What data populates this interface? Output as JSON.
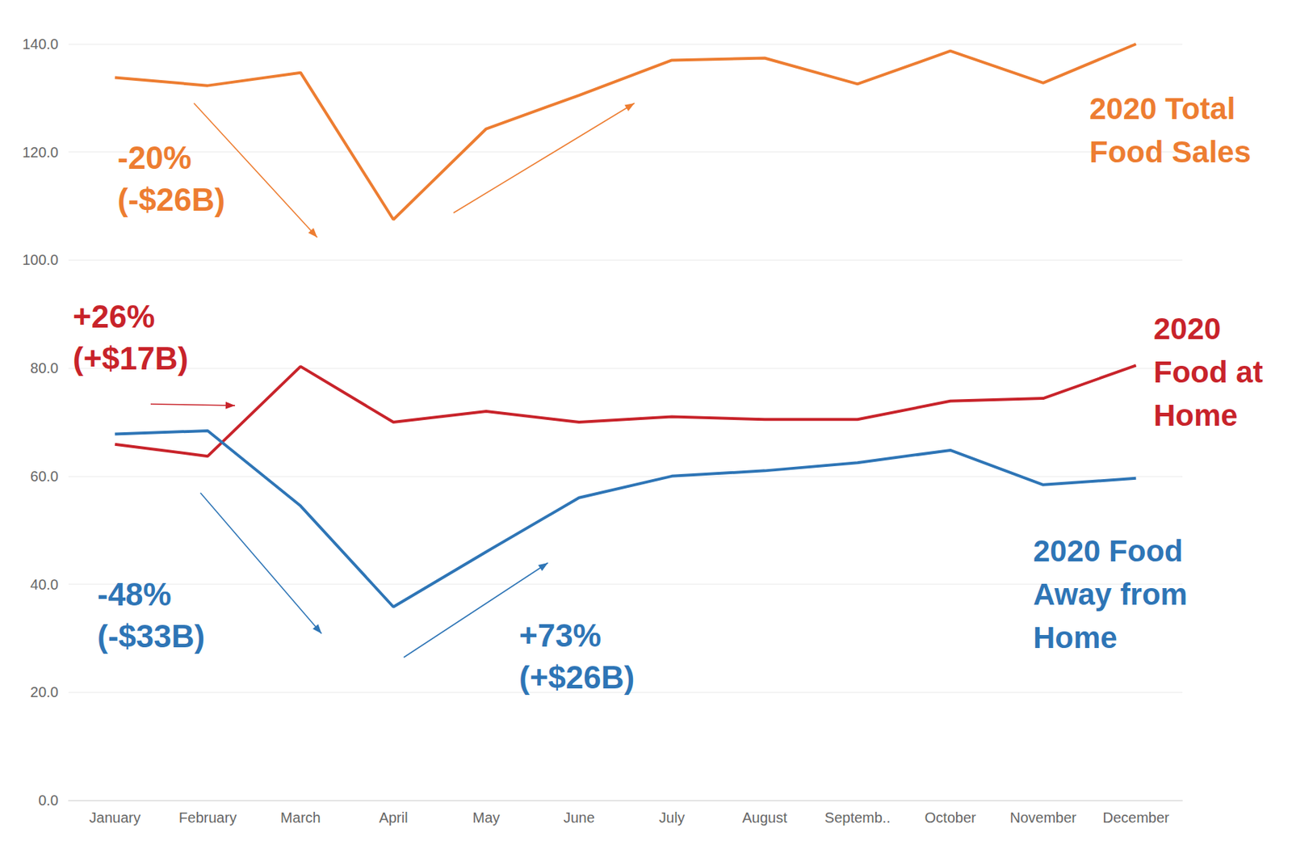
{
  "chart_data": {
    "type": "line",
    "categories": [
      "January",
      "February",
      "March",
      "April",
      "May",
      "June",
      "July",
      "August",
      "Septemb..",
      "October",
      "November",
      "December"
    ],
    "series": [
      {
        "name": "2020 Total Food Sales",
        "color": "#ed7d31",
        "values": [
          133.8,
          132.3,
          134.7,
          107.5,
          124.3,
          130.5,
          137.0,
          137.4,
          132.6,
          138.7,
          132.8,
          140.0
        ]
      },
      {
        "name": "2020 Food at Home",
        "color": "#c8232a",
        "values": [
          65.9,
          63.7,
          80.3,
          70.0,
          72.0,
          70.0,
          71.0,
          70.5,
          70.5,
          73.9,
          74.4,
          80.5
        ]
      },
      {
        "name": "2020 Food Away from Home",
        "color": "#2e75b6",
        "values": [
          67.8,
          68.4,
          54.5,
          35.8,
          46.0,
          56.0,
          60.0,
          61.0,
          62.5,
          64.8,
          58.4,
          59.6
        ]
      }
    ],
    "annotations": [
      {
        "series": "2020 Total Food Sales",
        "lines": [
          "-20%",
          "(-$26B)"
        ]
      },
      {
        "series": "2020 Food at Home",
        "lines": [
          "+26%",
          "(+$17B)"
        ]
      },
      {
        "series": "2020 Food Away from Home",
        "lines": [
          "-48%",
          "(-$33B)"
        ]
      },
      {
        "series": "2020 Food Away from Home",
        "lines": [
          "+73%",
          "(+$26B)"
        ]
      }
    ],
    "ylim": [
      0,
      140
    ],
    "yticks": [
      {
        "value": 0,
        "label": "0.0"
      },
      {
        "value": 20,
        "label": "20.0"
      },
      {
        "value": 40,
        "label": "40.0"
      },
      {
        "value": 60,
        "label": "60.0"
      },
      {
        "value": 80,
        "label": "80.0"
      },
      {
        "value": 100,
        "label": "100.0"
      },
      {
        "value": 120,
        "label": "120.0"
      },
      {
        "value": 140,
        "label": "140.0"
      }
    ],
    "grid": true,
    "legend": "none"
  }
}
